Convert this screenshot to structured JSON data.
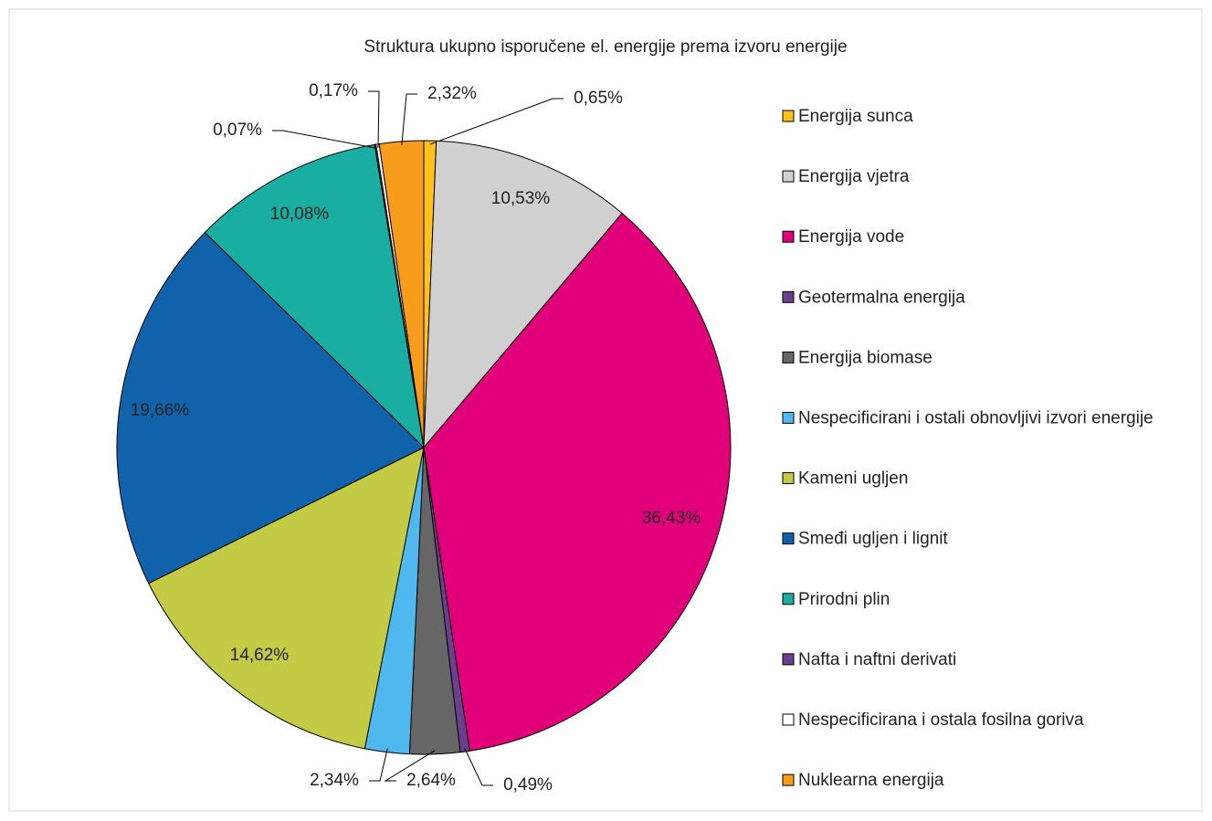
{
  "chart_data": {
    "type": "pie",
    "title": "Struktura ukupno isporučene el. energije prema izvoru energije",
    "categories": [
      "Energija sunca",
      "Energija vjetra",
      "Energija vode",
      "Geotermalna energija",
      "Energija biomase",
      "Nespecificirani i ostali obnovljivi izvori energije",
      "Kameni ugljen",
      "Smeđi ugljen i lignit",
      "Prirodni plin",
      "Nafta i naftni derivati",
      "Nespecificirana i ostala fosilna goriva",
      "Nuklearna energija"
    ],
    "values": [
      0.65,
      10.53,
      36.43,
      0.49,
      2.64,
      2.34,
      14.62,
      19.66,
      10.08,
      0.07,
      0.17,
      2.32
    ],
    "value_labels": [
      "0,65%",
      "10,53%",
      "36,43%",
      "0,49%",
      "2,64%",
      "2,34%",
      "14,62%",
      "19,66%",
      "10,08%",
      "0,07%",
      "0,17%",
      "2,32%"
    ],
    "colors": [
      "#ffc21a",
      "#d0d0d0",
      "#e2007a",
      "#6b3f8e",
      "#666666",
      "#4fb9ef",
      "#c3cb45",
      "#1062aa",
      "#1aaea2",
      "#6b3f8e",
      "#ffffff",
      "#f89c1c"
    ],
    "legend": "right"
  }
}
